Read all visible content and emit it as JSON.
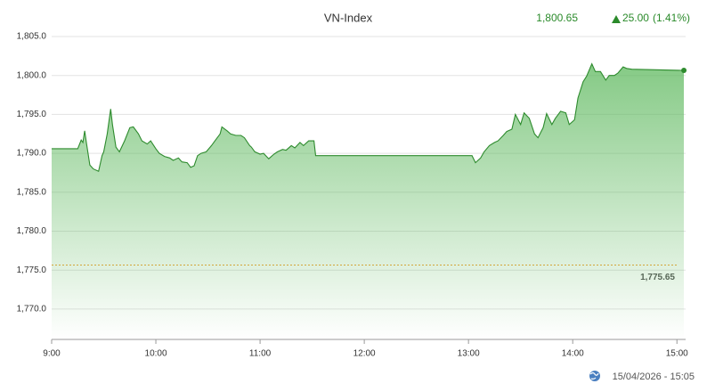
{
  "chart_data": {
    "type": "area",
    "title": "VN-Index",
    "current": {
      "value": 1800.65,
      "label": "1,800.65"
    },
    "change": {
      "value": 25.0,
      "label": "25.00"
    },
    "change_pct": {
      "value": 1.41,
      "label": "(1.41%)"
    },
    "timestamp": "15/04/2026 - 15:05",
    "color": "#2e8b2e",
    "x": [
      540,
      555,
      557,
      558,
      559,
      560,
      562,
      564,
      567,
      569,
      570,
      572,
      574,
      575,
      577,
      579,
      582,
      585,
      587,
      590,
      592,
      595,
      597,
      600,
      602,
      605,
      608,
      610,
      613,
      615,
      618,
      620,
      622,
      624,
      626,
      629,
      632,
      634,
      637,
      638,
      641,
      643,
      646,
      649,
      651,
      654,
      655,
      657,
      660,
      662,
      665,
      668,
      670,
      673,
      675,
      678,
      680,
      683,
      685,
      688,
      691,
      692,
      782,
      784,
      787,
      789,
      792,
      795,
      797,
      800,
      802,
      805,
      807,
      810,
      812,
      815,
      818,
      820,
      823,
      825,
      828,
      830,
      833,
      836,
      838,
      841,
      843,
      846,
      848,
      851,
      853,
      856,
      859,
      861,
      864,
      866,
      869,
      871,
      874,
      904
    ],
    "values": [
      1790.6,
      1790.6,
      1791.7,
      1791.4,
      1792.9,
      1791.4,
      1788.5,
      1788.0,
      1787.7,
      1789.7,
      1790.2,
      1792.5,
      1795.7,
      1793.7,
      1790.8,
      1790.2,
      1791.6,
      1793.3,
      1793.4,
      1792.5,
      1791.6,
      1791.2,
      1791.6,
      1790.6,
      1790.0,
      1789.6,
      1789.4,
      1789.1,
      1789.4,
      1788.9,
      1788.8,
      1788.2,
      1788.4,
      1789.7,
      1790.0,
      1790.2,
      1791.0,
      1791.6,
      1792.5,
      1793.4,
      1792.9,
      1792.5,
      1792.3,
      1792.3,
      1792.0,
      1791.0,
      1790.8,
      1790.2,
      1789.9,
      1790.0,
      1789.3,
      1789.9,
      1790.2,
      1790.5,
      1790.4,
      1791.0,
      1790.7,
      1791.4,
      1791.0,
      1791.6,
      1791.6,
      1789.7,
      1789.7,
      1788.8,
      1789.4,
      1790.2,
      1791.0,
      1791.4,
      1791.6,
      1792.3,
      1792.8,
      1793.1,
      1795.0,
      1793.7,
      1795.2,
      1794.5,
      1792.5,
      1792.0,
      1793.3,
      1795.1,
      1793.7,
      1794.5,
      1795.4,
      1795.2,
      1793.7,
      1794.3,
      1797.1,
      1799.2,
      1799.9,
      1801.5,
      1800.5,
      1800.5,
      1799.4,
      1800.0,
      1800.0,
      1800.3,
      1801.1,
      1800.9,
      1800.8,
      1800.65
    ],
    "reference": {
      "value": 1775.65,
      "label": "1,775.65",
      "color": "#f0a030"
    },
    "xlim": [
      540,
      905
    ],
    "xticks": [
      {
        "value": 540,
        "label": "9:00"
      },
      {
        "value": 600,
        "label": "10:00"
      },
      {
        "value": 660,
        "label": "11:00"
      },
      {
        "value": 720,
        "label": "12:00"
      },
      {
        "value": 780,
        "label": "13:00"
      },
      {
        "value": 840,
        "label": "14:00"
      },
      {
        "value": 900,
        "label": "15:00"
      }
    ],
    "ylim": [
      1766.1,
      1805
    ],
    "yticks": [
      {
        "value": 1770,
        "label": "1,770.0"
      },
      {
        "value": 1775,
        "label": "1,775.0"
      },
      {
        "value": 1780,
        "label": "1,780.0"
      },
      {
        "value": 1785,
        "label": "1,785.0"
      },
      {
        "value": 1790,
        "label": "1,790.0"
      },
      {
        "value": 1795,
        "label": "1,795.0"
      },
      {
        "value": 1800,
        "label": "1,800.0"
      },
      {
        "value": 1805,
        "label": "1,805.0"
      }
    ],
    "grid": true
  }
}
